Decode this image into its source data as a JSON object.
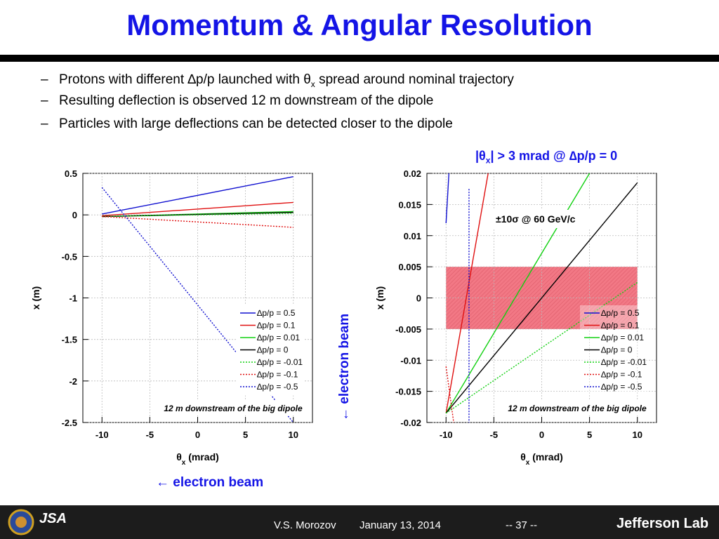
{
  "slide": {
    "title": "Momentum & Angular Resolution",
    "bullets": [
      {
        "dash": "–",
        "pre": "Protons with different ",
        "sym1": "∆",
        "mid": "p/p launched with ",
        "sym2": "θ",
        "sub": "x",
        "post": " spread around nominal trajectory"
      },
      {
        "dash": "–",
        "pre": "Resulting deflection is observed 12 m downstream of the dipole"
      },
      {
        "dash": "–",
        "pre": "Particles with large deflections can be detected closer to the dipole"
      }
    ],
    "right_annotation": {
      "pre": "|θ",
      "sub": "x",
      "post": "| > 3 mrad @ ∆p/p = 0"
    },
    "vertical_annotation": "← electron beam",
    "bottom_annotation": "← electron beam",
    "footer": {
      "author": "V.S. Morozov",
      "date": "January 13, 2014",
      "page": "-- 37 --",
      "lab_logo": "Jefferson Lab",
      "left_logo_text": "JSA"
    }
  },
  "chart_data": [
    {
      "type": "line",
      "xlabel_pre": "θ",
      "xlabel_sub": "x",
      "xlabel_post": " (mrad)",
      "ylabel": "x (m)",
      "xlim": [
        -12,
        12
      ],
      "ylim": [
        -2.5,
        0.5
      ],
      "x_ticks": [
        -10,
        -5,
        0,
        5,
        10
      ],
      "x_tick_labels": [
        "-10",
        "-5",
        "0",
        "5",
        "10"
      ],
      "y_ticks": [
        0.5,
        0,
        -0.5,
        -1,
        -1.5,
        -2,
        -2.5
      ],
      "y_tick_labels": [
        "0.5",
        "0",
        "-0.5",
        "-1",
        "-1.5",
        "-2",
        "-2.5"
      ],
      "grid": true,
      "legend_position": "bottom-right",
      "annotation": "12 m downstream of the big dipole",
      "series": [
        {
          "name": "∆p/p = 0.5",
          "color": "#1010d0",
          "dash": "solid",
          "x": [
            -10,
            10
          ],
          "y": [
            0.01,
            0.46
          ]
        },
        {
          "name": "∆p/p = 0.1",
          "color": "#e01010",
          "dash": "solid",
          "x": [
            -10,
            10
          ],
          "y": [
            -0.01,
            0.15
          ]
        },
        {
          "name": "∆p/p = 0.01",
          "color": "#10d010",
          "dash": "solid",
          "x": [
            -10,
            10
          ],
          "y": [
            -0.02,
            0.04
          ]
        },
        {
          "name": "∆p/p = 0",
          "color": "#000000",
          "dash": "solid",
          "x": [
            -10,
            10
          ],
          "y": [
            -0.02,
            0.03
          ]
        },
        {
          "name": "∆p/p = -0.01",
          "color": "#10d010",
          "dash": "dot",
          "x": [
            -10,
            10
          ],
          "y": [
            -0.02,
            0.02
          ]
        },
        {
          "name": "∆p/p = -0.1",
          "color": "#e01010",
          "dash": "dot",
          "x": [
            -10,
            10
          ],
          "y": [
            -0.02,
            -0.15
          ]
        },
        {
          "name": "∆p/p = -0.5",
          "color": "#1010d0",
          "dash": "dot",
          "x": [
            -10,
            10
          ],
          "y": [
            0.33,
            -2.5
          ]
        }
      ]
    },
    {
      "type": "line",
      "xlabel_pre": "θ",
      "xlabel_sub": "x",
      "xlabel_post": " (mrad)",
      "ylabel": "x (m)",
      "xlim": [
        -12,
        12
      ],
      "ylim": [
        -0.02,
        0.02
      ],
      "x_ticks": [
        -10,
        -5,
        0,
        5,
        10
      ],
      "x_tick_labels": [
        "-10",
        "-5",
        "0",
        "5",
        "10"
      ],
      "y_ticks": [
        0.02,
        0.015,
        0.01,
        0.005,
        0,
        -0.005,
        -0.01,
        -0.015,
        -0.02
      ],
      "y_tick_labels": [
        "0.02",
        "0.015",
        "0.01",
        "0.005",
        "0",
        "-0.005",
        "-0.01",
        "-0.015",
        "-0.02"
      ],
      "grid": true,
      "legend_position": "bottom-right",
      "annotation": "12 m downstream of the big dipole",
      "band": {
        "label": "±10σ  @ 60 GeV/c",
        "x": [
          -10,
          10
        ],
        "y": [
          -0.005,
          0.005
        ],
        "color": "#f06070"
      },
      "series": [
        {
          "name": "∆p/p = 0.5",
          "color": "#1010d0",
          "dash": "solid",
          "x": [
            -10,
            -9.7
          ],
          "y": [
            0.012,
            0.02
          ]
        },
        {
          "name": "∆p/p = 0.1",
          "color": "#e01010",
          "dash": "solid",
          "x": [
            -10,
            -5.6
          ],
          "y": [
            -0.0185,
            0.02
          ]
        },
        {
          "name": "∆p/p = 0.01",
          "color": "#10d010",
          "dash": "solid",
          "x": [
            -10,
            5
          ],
          "y": [
            -0.0185,
            0.02
          ]
        },
        {
          "name": "∆p/p = 0",
          "color": "#000000",
          "dash": "solid",
          "x": [
            -10,
            10
          ],
          "y": [
            -0.0185,
            0.0185
          ]
        },
        {
          "name": "∆p/p = -0.01",
          "color": "#10d010",
          "dash": "dot",
          "x": [
            -10,
            10
          ],
          "y": [
            -0.0185,
            0.0025
          ]
        },
        {
          "name": "∆p/p = -0.1",
          "color": "#e01010",
          "dash": "dot",
          "x": [
            -10,
            -9.2
          ],
          "y": [
            -0.011,
            -0.02
          ]
        },
        {
          "name": "∆p/p = -0.5",
          "color": "#1010d0",
          "dash": "dot",
          "x": [
            -7.6,
            -7.6
          ],
          "y": [
            0.0175,
            -0.02
          ]
        }
      ]
    }
  ]
}
